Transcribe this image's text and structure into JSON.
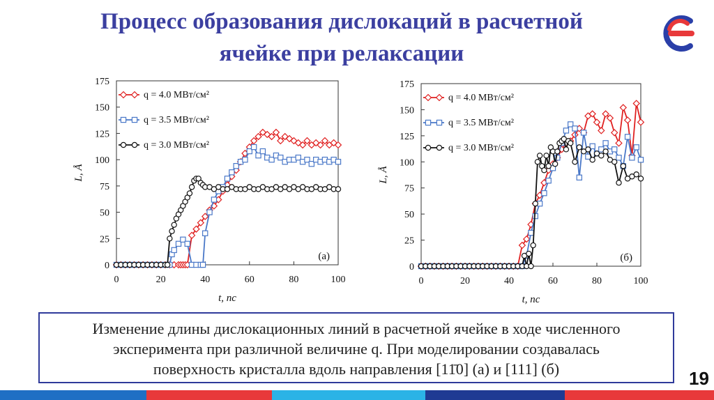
{
  "slide": {
    "title_line1": "Процесс образования дислокаций в расчетной",
    "title_line2": "ячейке при релаксации",
    "page_number": "19",
    "caption_line1": "Изменение длины дислокационных линий в расчетной ячейке в ходе численного",
    "caption_line2": "эксперимента при различной величине q. При моделировании создавалась",
    "caption_line3": "поверхность кристалла вдоль направления [11̄0] (а) и [111] (б)",
    "colors": {
      "title": "#3b3fa0",
      "frame": "#2f3a9a",
      "red": "#e02020",
      "blue": "#4a78c8",
      "black": "#111111"
    }
  },
  "chart_data": [
    {
      "type": "scatter",
      "panel_label": "(а)",
      "xlabel": "t, пс",
      "ylabel": "L, Å",
      "xlim": [
        0,
        100
      ],
      "ylim": [
        0,
        175
      ],
      "xticks": [
        "0",
        "20",
        "40",
        "60",
        "80",
        "100"
      ],
      "yticks": [
        "0",
        "25",
        "50",
        "75",
        "100",
        "125",
        "150",
        "175"
      ],
      "legend": [
        "q = 4.0 МВт/см²",
        "q = 3.5 МВт/см²",
        "q = 3.0 МВт/см²"
      ],
      "series": [
        {
          "name": "q = 4.0 МВт/см²",
          "color": "red",
          "marker": "diamond",
          "x": [
            0,
            2,
            4,
            6,
            8,
            10,
            12,
            14,
            16,
            18,
            20,
            22,
            24,
            26,
            28,
            29,
            30,
            31,
            32,
            34,
            36,
            38,
            40,
            42,
            44,
            46,
            48,
            50,
            52,
            54,
            56,
            58,
            60,
            62,
            64,
            66,
            68,
            70,
            72,
            74,
            76,
            78,
            80,
            82,
            84,
            86,
            88,
            90,
            92,
            94,
            96,
            98,
            100
          ],
          "y": [
            0,
            0,
            0,
            0,
            0,
            0,
            0,
            0,
            0,
            0,
            0,
            0,
            0,
            0,
            0,
            0,
            0,
            0,
            0,
            28,
            34,
            40,
            46,
            52,
            56,
            62,
            70,
            76,
            84,
            90,
            98,
            106,
            112,
            118,
            122,
            126,
            124,
            122,
            126,
            118,
            122,
            120,
            118,
            116,
            114,
            118,
            114,
            116,
            114,
            118,
            114,
            116,
            114
          ]
        },
        {
          "name": "q = 3.5 МВт/см²",
          "color": "blue",
          "marker": "square",
          "x": [
            0,
            2,
            4,
            6,
            8,
            10,
            12,
            14,
            16,
            18,
            20,
            22,
            24,
            25,
            26,
            28,
            30,
            32,
            34,
            36,
            38,
            39,
            40,
            42,
            44,
            46,
            48,
            50,
            52,
            54,
            56,
            58,
            60,
            62,
            64,
            66,
            68,
            70,
            72,
            74,
            76,
            78,
            80,
            82,
            84,
            86,
            88,
            90,
            92,
            94,
            96,
            98,
            100
          ],
          "y": [
            0,
            0,
            0,
            0,
            0,
            0,
            0,
            0,
            0,
            0,
            0,
            0,
            0,
            10,
            14,
            20,
            24,
            20,
            0,
            0,
            0,
            0,
            30,
            50,
            62,
            70,
            74,
            82,
            88,
            94,
            98,
            100,
            108,
            112,
            104,
            108,
            102,
            100,
            104,
            102,
            98,
            100,
            100,
            102,
            98,
            100,
            96,
            100,
            98,
            100,
            98,
            100,
            98
          ]
        },
        {
          "name": "q = 3.0 МВт/см²",
          "color": "black",
          "marker": "circle",
          "x": [
            0,
            2,
            4,
            6,
            8,
            10,
            12,
            14,
            16,
            18,
            20,
            22,
            23,
            24,
            25,
            26,
            27,
            28,
            29,
            30,
            31,
            32,
            33,
            34,
            35,
            36,
            37,
            38,
            39,
            40,
            42,
            44,
            46,
            48,
            50,
            52,
            54,
            56,
            58,
            60,
            62,
            64,
            66,
            68,
            70,
            72,
            74,
            76,
            78,
            80,
            82,
            84,
            86,
            88,
            90,
            92,
            94,
            96,
            98,
            100
          ],
          "y": [
            0,
            0,
            0,
            0,
            0,
            0,
            0,
            0,
            0,
            0,
            0,
            0,
            0,
            25,
            32,
            38,
            44,
            48,
            52,
            56,
            60,
            64,
            68,
            74,
            80,
            82,
            82,
            78,
            76,
            74,
            74,
            72,
            74,
            72,
            72,
            74,
            72,
            72,
            72,
            74,
            72,
            72,
            74,
            72,
            72,
            74,
            72,
            74,
            72,
            74,
            72,
            74,
            72,
            72,
            74,
            72,
            72,
            74,
            72,
            72
          ]
        }
      ]
    },
    {
      "type": "scatter",
      "panel_label": "(б)",
      "xlabel": "t, пс",
      "ylabel": "L, Å",
      "xlim": [
        0,
        100
      ],
      "ylim": [
        0,
        175
      ],
      "xticks": [
        "0",
        "20",
        "40",
        "60",
        "80",
        "100"
      ],
      "yticks": [
        "0",
        "25",
        "50",
        "75",
        "100",
        "125",
        "150",
        "175"
      ],
      "legend": [
        "q = 4.0 МВт/см²",
        "q = 3.5 МВт/см²",
        "q = 3.0 МВт/см²"
      ],
      "series": [
        {
          "name": "q = 4.0 МВт/см²",
          "color": "red",
          "marker": "diamond",
          "x": [
            0,
            2,
            4,
            6,
            8,
            10,
            12,
            14,
            16,
            18,
            20,
            22,
            24,
            26,
            28,
            30,
            32,
            34,
            36,
            38,
            40,
            42,
            44,
            46,
            48,
            50,
            52,
            54,
            56,
            58,
            60,
            62,
            64,
            66,
            68,
            70,
            72,
            74,
            76,
            78,
            80,
            82,
            84,
            86,
            88,
            90,
            92,
            94,
            96,
            98,
            100
          ],
          "y": [
            0,
            0,
            0,
            0,
            0,
            0,
            0,
            0,
            0,
            0,
            0,
            0,
            0,
            0,
            0,
            0,
            0,
            0,
            0,
            0,
            0,
            0,
            0,
            20,
            26,
            40,
            60,
            68,
            80,
            92,
            98,
            104,
            112,
            118,
            120,
            126,
            132,
            128,
            144,
            146,
            138,
            130,
            146,
            142,
            128,
            118,
            152,
            140,
            106,
            156,
            138
          ]
        },
        {
          "name": "q = 3.5 МВт/см²",
          "color": "blue",
          "marker": "square",
          "x": [
            0,
            2,
            4,
            6,
            8,
            10,
            12,
            14,
            16,
            18,
            20,
            22,
            24,
            26,
            28,
            30,
            32,
            34,
            36,
            38,
            40,
            42,
            44,
            46,
            48,
            50,
            52,
            54,
            56,
            58,
            60,
            62,
            64,
            66,
            68,
            70,
            72,
            74,
            76,
            78,
            80,
            82,
            84,
            86,
            88,
            90,
            92,
            94,
            96,
            98,
            100
          ],
          "y": [
            0,
            0,
            0,
            0,
            0,
            0,
            0,
            0,
            0,
            0,
            0,
            0,
            0,
            0,
            0,
            0,
            0,
            0,
            0,
            0,
            0,
            0,
            0,
            0,
            10,
            32,
            48,
            60,
            70,
            82,
            94,
            104,
            118,
            130,
            136,
            132,
            85,
            128,
            105,
            115,
            108,
            112,
            118,
            110,
            112,
            104,
            96,
            124,
            104,
            114,
            102
          ]
        },
        {
          "name": "q = 3.0 МВт/см²",
          "color": "black",
          "marker": "circle",
          "x": [
            0,
            2,
            4,
            6,
            8,
            10,
            12,
            14,
            16,
            18,
            20,
            22,
            24,
            26,
            28,
            30,
            32,
            34,
            36,
            38,
            40,
            42,
            44,
            46,
            47,
            48,
            49,
            50,
            51,
            52,
            53,
            54,
            55,
            56,
            57,
            58,
            59,
            60,
            61,
            62,
            63,
            64,
            65,
            66,
            67,
            68,
            70,
            72,
            74,
            76,
            78,
            80,
            82,
            84,
            86,
            88,
            90,
            92,
            94,
            96,
            98,
            100
          ],
          "y": [
            0,
            0,
            0,
            0,
            0,
            0,
            0,
            0,
            0,
            0,
            0,
            0,
            0,
            0,
            0,
            0,
            0,
            0,
            0,
            0,
            0,
            0,
            0,
            0,
            10,
            0,
            12,
            0,
            20,
            60,
            100,
            106,
            96,
            92,
            106,
            96,
            114,
            110,
            98,
            110,
            118,
            120,
            122,
            112,
            120,
            118,
            100,
            114,
            110,
            112,
            102,
            108,
            106,
            110,
            102,
            100,
            80,
            96,
            84,
            86,
            88,
            84
          ]
        }
      ]
    }
  ]
}
